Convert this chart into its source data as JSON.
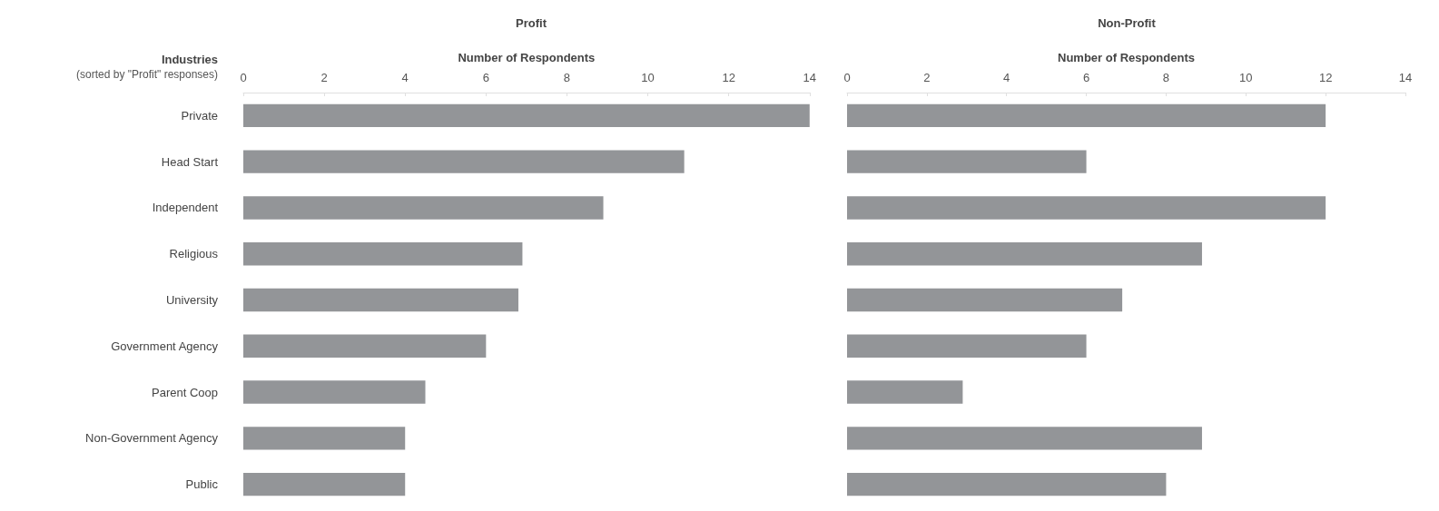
{
  "chart_data": [
    {
      "type": "bar",
      "orientation": "horizontal",
      "title": "Profit",
      "xlabel": "Number of Respondents",
      "ylabel": "Industries",
      "annotations": [
        "(sorted by \"Profit\" responses)"
      ],
      "categories": [
        "Private",
        "Head Start",
        "Independent",
        "Religious",
        "University",
        "Government Agency",
        "Parent Coop",
        "Non-Government Agency",
        "Public"
      ],
      "values": [
        14,
        10.9,
        8.9,
        6.9,
        6.8,
        6,
        4.5,
        4,
        4
      ],
      "color": "#939598",
      "xlim": [
        0,
        14
      ],
      "xticks": [
        0,
        2,
        4,
        6,
        8,
        10,
        12,
        14
      ],
      "grid": false
    },
    {
      "type": "bar",
      "orientation": "horizontal",
      "title": "Non-Profit",
      "xlabel": "Number of Respondents",
      "categories": [
        null,
        null,
        null,
        null,
        null,
        null,
        null,
        null,
        null
      ],
      "values": [
        12,
        6,
        12,
        8.9,
        6.9,
        6,
        2.9,
        8.9,
        8
      ],
      "color": "#939598",
      "xlim": [
        0,
        14
      ],
      "xticks": [
        0,
        2,
        4,
        6,
        8,
        10,
        12,
        14
      ],
      "grid": false
    }
  ]
}
